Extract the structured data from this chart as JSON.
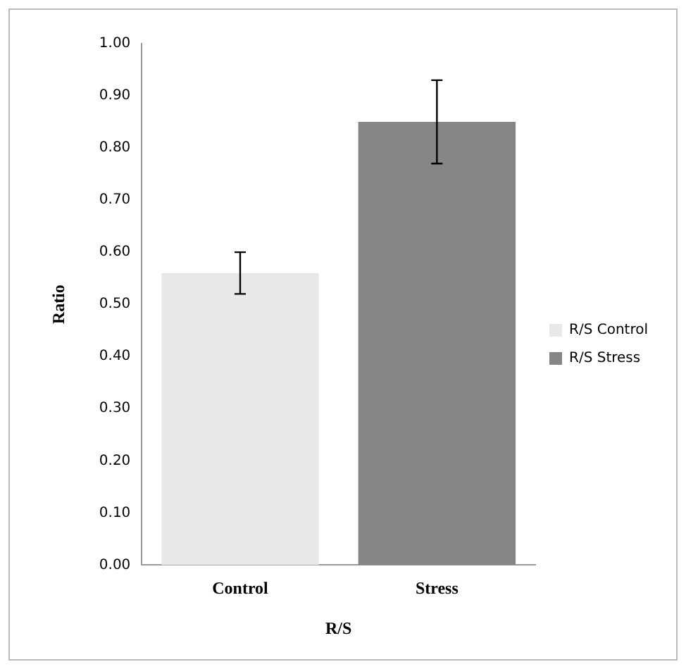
{
  "chart_data": {
    "type": "bar",
    "xlabel": "R/S",
    "ylabel": "Ratio",
    "categories": [
      "Control",
      "Stress"
    ],
    "series": [
      {
        "name": "R/S Control",
        "color": "#e8e8e8",
        "values": [
          0.56,
          null
        ],
        "errors": [
          0.04,
          null
        ]
      },
      {
        "name": "R/S Stress",
        "color": "#868686",
        "values": [
          null,
          0.85
        ],
        "errors": [
          null,
          0.08
        ]
      }
    ],
    "ylim": [
      0,
      1
    ],
    "yticks": [
      {
        "value": 0,
        "label": "0.00"
      },
      {
        "value": 0.1,
        "label": "0.10"
      },
      {
        "value": 0.2,
        "label": "0.20"
      },
      {
        "value": 0.3,
        "label": "0.30"
      },
      {
        "value": 0.4,
        "label": "0.40"
      },
      {
        "value": 0.5,
        "label": "0.50"
      },
      {
        "value": 0.6,
        "label": "0.60"
      },
      {
        "value": 0.7,
        "label": "0.70"
      },
      {
        "value": 0.8,
        "label": "0.80"
      },
      {
        "value": 0.9,
        "label": "0.90"
      },
      {
        "value": 1,
        "label": "1.00"
      }
    ],
    "grid": false,
    "legend": "right"
  }
}
